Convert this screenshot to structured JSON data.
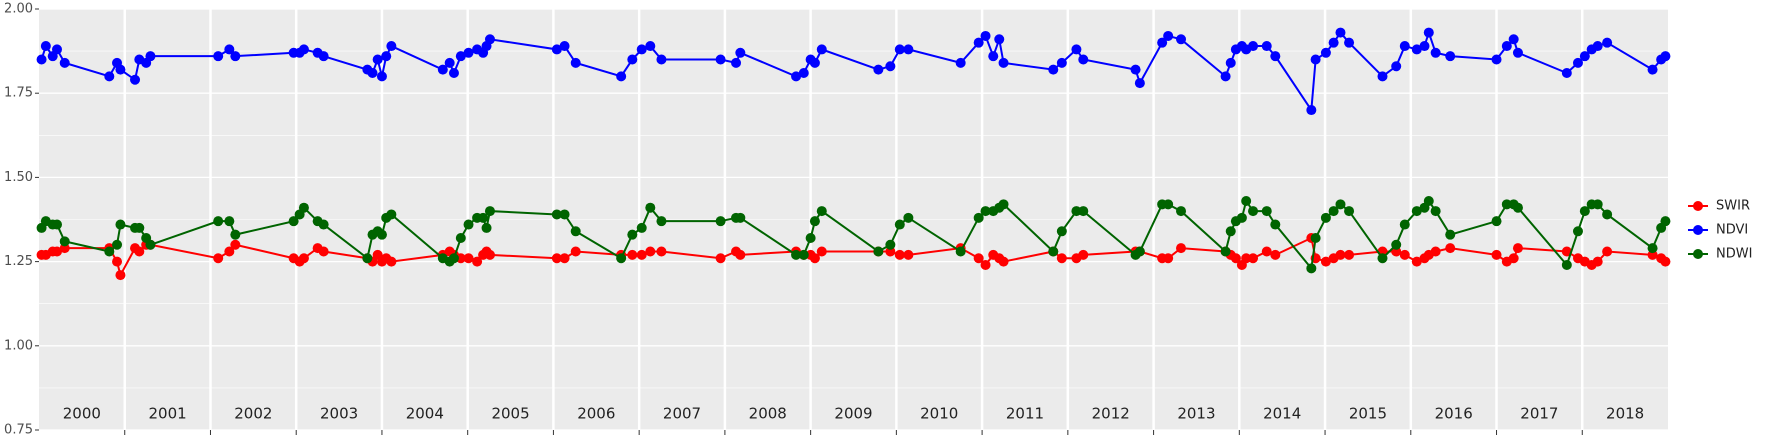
{
  "chart_data": {
    "type": "line",
    "x": [
      2000.03,
      2000.08,
      2000.16,
      2000.21,
      2000.3,
      2000.82,
      2000.91,
      2000.95,
      2001.12,
      2001.17,
      2001.25,
      2001.3,
      2002.09,
      2002.22,
      2002.29,
      2002.97,
      2003.04,
      2003.09,
      2003.25,
      2003.32,
      2003.83,
      2003.89,
      2003.95,
      2004.0,
      2004.05,
      2004.11,
      2004.71,
      2004.79,
      2004.84,
      2004.92,
      2005.01,
      2005.11,
      2005.18,
      2005.22,
      2005.26,
      2006.04,
      2006.13,
      2006.26,
      2006.79,
      2006.92,
      2007.03,
      2007.13,
      2007.26,
      2007.95,
      2008.13,
      2008.18,
      2008.83,
      2008.92,
      2009.0,
      2009.05,
      2009.13,
      2009.79,
      2009.93,
      2010.04,
      2010.14,
      2010.75,
      2010.96,
      2011.04,
      2011.13,
      2011.2,
      2011.25,
      2011.83,
      2011.93,
      2012.1,
      2012.18,
      2012.79,
      2012.84,
      2013.1,
      2013.17,
      2013.32,
      2013.84,
      2013.9,
      2013.96,
      2014.03,
      2014.08,
      2014.16,
      2014.32,
      2014.42,
      2014.84,
      2014.89,
      2015.01,
      2015.1,
      2015.18,
      2015.28,
      2015.67,
      2015.83,
      2015.93,
      2016.07,
      2016.16,
      2016.21,
      2016.29,
      2016.46,
      2017.0,
      2017.12,
      2017.2,
      2017.25,
      2017.82,
      2017.95,
      2018.03,
      2018.11,
      2018.18,
      2018.29,
      2018.82,
      2018.92,
      2018.97
    ],
    "series": [
      {
        "name": "SWIR",
        "color": "#ff0000",
        "values": [
          1.27,
          1.27,
          1.28,
          1.28,
          1.29,
          1.29,
          1.25,
          1.21,
          1.29,
          1.28,
          1.3,
          1.3,
          1.26,
          1.28,
          1.3,
          1.26,
          1.25,
          1.26,
          1.29,
          1.28,
          1.26,
          1.25,
          1.27,
          1.25,
          1.26,
          1.25,
          1.27,
          1.28,
          1.27,
          1.26,
          1.26,
          1.25,
          1.27,
          1.28,
          1.27,
          1.26,
          1.26,
          1.28,
          1.27,
          1.27,
          1.27,
          1.28,
          1.28,
          1.26,
          1.28,
          1.27,
          1.28,
          1.27,
          1.27,
          1.26,
          1.28,
          1.28,
          1.28,
          1.27,
          1.27,
          1.29,
          1.26,
          1.24,
          1.27,
          1.26,
          1.25,
          1.28,
          1.26,
          1.26,
          1.27,
          1.28,
          1.28,
          1.26,
          1.26,
          1.29,
          1.28,
          1.27,
          1.26,
          1.24,
          1.26,
          1.26,
          1.28,
          1.27,
          1.32,
          1.26,
          1.25,
          1.26,
          1.27,
          1.27,
          1.28,
          1.28,
          1.27,
          1.25,
          1.26,
          1.27,
          1.28,
          1.29,
          1.27,
          1.25,
          1.26,
          1.29,
          1.28,
          1.26,
          1.25,
          1.24,
          1.25,
          1.28,
          1.27,
          1.26,
          1.25
        ]
      },
      {
        "name": "NDVI",
        "color": "#0000ff",
        "values": [
          1.85,
          1.89,
          1.86,
          1.88,
          1.84,
          1.8,
          1.84,
          1.82,
          1.79,
          1.85,
          1.84,
          1.86,
          1.86,
          1.88,
          1.86,
          1.87,
          1.87,
          1.88,
          1.87,
          1.86,
          1.82,
          1.81,
          1.85,
          1.8,
          1.86,
          1.89,
          1.82,
          1.84,
          1.81,
          1.86,
          1.87,
          1.88,
          1.87,
          1.89,
          1.91,
          1.88,
          1.89,
          1.84,
          1.8,
          1.85,
          1.88,
          1.89,
          1.85,
          1.85,
          1.84,
          1.87,
          1.8,
          1.81,
          1.85,
          1.84,
          1.88,
          1.82,
          1.83,
          1.88,
          1.88,
          1.84,
          1.9,
          1.92,
          1.86,
          1.91,
          1.84,
          1.82,
          1.84,
          1.88,
          1.85,
          1.82,
          1.78,
          1.9,
          1.92,
          1.91,
          1.8,
          1.84,
          1.88,
          1.89,
          1.88,
          1.89,
          1.89,
          1.86,
          1.7,
          1.85,
          1.87,
          1.9,
          1.93,
          1.9,
          1.8,
          1.83,
          1.89,
          1.88,
          1.89,
          1.93,
          1.87,
          1.86,
          1.85,
          1.89,
          1.91,
          1.87,
          1.81,
          1.84,
          1.86,
          1.88,
          1.89,
          1.9,
          1.82,
          1.85,
          1.86
        ]
      },
      {
        "name": "NDWI",
        "color": "#006400",
        "values": [
          1.35,
          1.37,
          1.36,
          1.36,
          1.31,
          1.28,
          1.3,
          1.36,
          1.35,
          1.35,
          1.32,
          1.3,
          1.37,
          1.37,
          1.33,
          1.37,
          1.39,
          1.41,
          1.37,
          1.36,
          1.26,
          1.33,
          1.34,
          1.33,
          1.38,
          1.39,
          1.26,
          1.25,
          1.26,
          1.32,
          1.36,
          1.38,
          1.38,
          1.35,
          1.4,
          1.39,
          1.39,
          1.34,
          1.26,
          1.33,
          1.35,
          1.41,
          1.37,
          1.37,
          1.38,
          1.38,
          1.27,
          1.27,
          1.32,
          1.37,
          1.4,
          1.28,
          1.3,
          1.36,
          1.38,
          1.28,
          1.38,
          1.4,
          1.4,
          1.41,
          1.42,
          1.28,
          1.34,
          1.4,
          1.4,
          1.27,
          1.28,
          1.42,
          1.42,
          1.4,
          1.28,
          1.34,
          1.37,
          1.38,
          1.43,
          1.4,
          1.4,
          1.36,
          1.23,
          1.32,
          1.38,
          1.4,
          1.42,
          1.4,
          1.26,
          1.3,
          1.36,
          1.4,
          1.41,
          1.43,
          1.4,
          1.33,
          1.37,
          1.42,
          1.42,
          1.41,
          1.24,
          1.34,
          1.4,
          1.42,
          1.42,
          1.39,
          1.29,
          1.35,
          1.37
        ]
      }
    ],
    "legend_order": [
      0,
      1,
      2
    ],
    "year_labels": [
      "2000",
      "2001",
      "2002",
      "2003",
      "2004",
      "2005",
      "2006",
      "2007",
      "2008",
      "2009",
      "2010",
      "2011",
      "2012",
      "2013",
      "2014",
      "2015",
      "2016",
      "2017",
      "2018"
    ],
    "xlim": [
      2000,
      2019
    ],
    "xticks": [
      2001,
      2002,
      2003,
      2004,
      2005,
      2006,
      2007,
      2008,
      2009,
      2010,
      2011,
      2012,
      2013,
      2014,
      2015,
      2016,
      2017,
      2018
    ],
    "ylim": [
      0.75,
      2.0
    ],
    "yticks": [
      0.75,
      {
        "value": 1.0,
        "label": "1.00"
      },
      1.25,
      {
        "value": 1.5,
        "label": "1.50"
      },
      {
        "value": 1.75,
        "label": "1.75"
      },
      {
        "value": 2.0,
        "label": "2.00"
      }
    ],
    "grid": true,
    "legend": "right"
  }
}
